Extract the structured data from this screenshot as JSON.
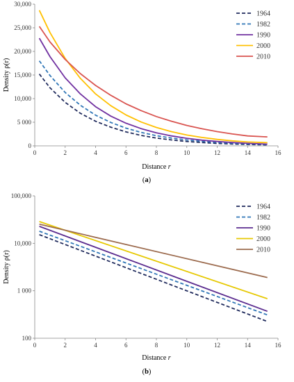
{
  "chart_data": [
    {
      "type": "line",
      "panel_label": "a",
      "xlabel": "Distance",
      "xlabel_var": "r",
      "ylabel": "Density ρ(r)",
      "xlim": [
        0,
        16
      ],
      "ylim": [
        0,
        30000
      ],
      "xticks": [
        "0",
        "2",
        "4",
        "6",
        "8",
        "10",
        "12",
        "14",
        "16"
      ],
      "xtick_values": [
        0,
        2,
        4,
        6,
        8,
        10,
        12,
        14,
        16
      ],
      "yticks": [
        "0",
        "5 000",
        "10,000",
        "15,000",
        "20,000",
        "25,000",
        "30,000"
      ],
      "ytick_values": [
        0,
        5000,
        10000,
        15000,
        20000,
        25000,
        30000
      ],
      "y_scale": "linear",
      "grid": false,
      "legend_position": "top-right",
      "x": [
        0.3,
        1,
        2,
        3,
        4,
        5,
        6,
        7,
        8,
        9,
        10,
        11,
        12,
        13,
        14,
        15.3
      ],
      "series": [
        {
          "name": "1964",
          "color": "#1f2a5c",
          "dash": "dashed",
          "values": [
            15200,
            12300,
            9200,
            6900,
            5200,
            3950,
            2950,
            2200,
            1650,
            1250,
            920,
            700,
            520,
            390,
            300,
            210
          ]
        },
        {
          "name": "1982",
          "color": "#2e75b6",
          "dash": "dashed",
          "values": [
            18000,
            14900,
            11300,
            8600,
            6500,
            4950,
            3750,
            2850,
            2150,
            1650,
            1250,
            950,
            720,
            550,
            420,
            300
          ]
        },
        {
          "name": "1990",
          "color": "#7030a0",
          "dash": "solid",
          "values": [
            22800,
            18900,
            14400,
            11000,
            8300,
            6300,
            4800,
            3650,
            2750,
            2100,
            1600,
            1200,
            920,
            700,
            530,
            370
          ]
        },
        {
          "name": "2000",
          "color": "#ffc000",
          "dash": "solid",
          "values": [
            28700,
            24000,
            18500,
            14300,
            11000,
            8500,
            6550,
            5050,
            3900,
            3000,
            2300,
            1780,
            1370,
            1060,
            820,
            670
          ]
        },
        {
          "name": "2010",
          "color": "#d9534f",
          "dash": "solid",
          "values": [
            25300,
            22000,
            18300,
            15300,
            12800,
            10700,
            8900,
            7450,
            6200,
            5200,
            4330,
            3620,
            3020,
            2520,
            2100,
            1900
          ]
        }
      ]
    },
    {
      "type": "line",
      "panel_label": "b",
      "xlabel": "Distance",
      "xlabel_var": "r",
      "ylabel": "Density ρ(r)",
      "xlim": [
        0,
        16
      ],
      "ylim": [
        100,
        100000
      ],
      "xticks": [
        "0",
        "2",
        "4",
        "6",
        "8",
        "10",
        "12",
        "14",
        "16"
      ],
      "xtick_values": [
        0,
        2,
        4,
        6,
        8,
        10,
        12,
        14,
        16
      ],
      "yticks": [
        "100",
        "1 000",
        "10,000",
        "100,000"
      ],
      "ytick_values": [
        100,
        1000,
        10000,
        100000
      ],
      "y_scale": "log",
      "grid": false,
      "legend_position": "top-right",
      "x": [
        0.3,
        15.3
      ],
      "series": [
        {
          "name": "1964",
          "color": "#1f2a5c",
          "dash": "dashed",
          "values": [
            15200,
            225
          ]
        },
        {
          "name": "1982",
          "color": "#2e75b6",
          "dash": "dashed",
          "values": [
            18000,
            310
          ]
        },
        {
          "name": "1990",
          "color": "#5b2c8f",
          "dash": "solid",
          "values": [
            22800,
            370
          ]
        },
        {
          "name": "2000",
          "color": "#e6c800",
          "dash": "solid",
          "values": [
            28700,
            680
          ]
        },
        {
          "name": "2010",
          "color": "#9c6b4e",
          "dash": "solid",
          "values": [
            25300,
            1900
          ]
        }
      ]
    }
  ]
}
